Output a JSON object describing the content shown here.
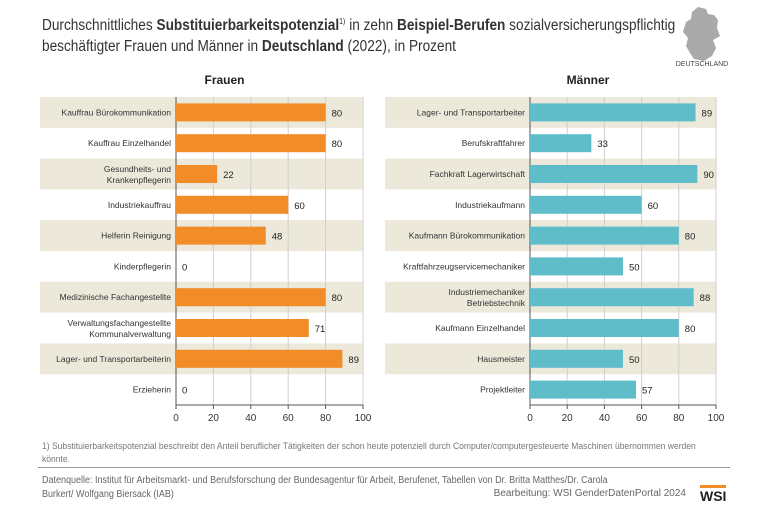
{
  "title": {
    "p1": "Durchschnittliches ",
    "b1": "Substituierbarkeitspotenzial",
    "sup": "1)",
    "p2": " in zehn ",
    "b2": "Beispiel-Berufen",
    "p3": " sozialversicherungspflichtig",
    "p4": "beschäftigter Frauen und Männer in ",
    "b3": "Deutschland",
    "p5": " (2022), in Prozent"
  },
  "map_label": "DEUTSCHLAND",
  "colors": {
    "frauen": "#f28c28",
    "maenner": "#5fbdc9",
    "band": "#ece8da",
    "grid": "#cfcfcf"
  },
  "chart_data": [
    {
      "type": "bar",
      "orientation": "horizontal",
      "title": "Frauen",
      "xlim": [
        0,
        100
      ],
      "xticks": [
        0,
        20,
        40,
        60,
        80,
        100
      ],
      "grid": true,
      "categories": [
        "Kauffrau Bürokommunikation",
        "Kauffrau Einzelhandel",
        "Gesundheits- und Krankenpflegerin",
        "Industriekauffrau",
        "Helferin Reinigung",
        "Kinderpflegerin",
        "Medizinische Fachangestellte",
        "Verwaltungsfachangestellte Kommunalverwaltung",
        "Lager- und Transportarbeiterin",
        "Erzieherin"
      ],
      "values": [
        80,
        80,
        22,
        60,
        48,
        0,
        80,
        71,
        89,
        0
      ]
    },
    {
      "type": "bar",
      "orientation": "horizontal",
      "title": "Männer",
      "xlim": [
        0,
        100
      ],
      "xticks": [
        0,
        20,
        40,
        60,
        80,
        100
      ],
      "grid": true,
      "categories": [
        "Lager- und Transportarbeiter",
        "Berufskraftfahrer",
        "Fachkraft Lagerwirtschaft",
        "Industriekaufmann",
        "Kaufmann Bürokommunikation",
        "Kraftfahrzeugservicemechaniker",
        "Industriemechaniker Betriebstechnik",
        "Kaufmann Einzelhandel",
        "Hausmeister",
        "Projektleiter"
      ],
      "values": [
        89,
        33,
        90,
        60,
        80,
        50,
        88,
        80,
        50,
        57
      ]
    }
  ],
  "footnote": "1) Substituierbarkeitspotenzial beschreibt den Anteil beruflicher Tätigkeiten der schon heute potenziell durch Computer/computergesteuerte Maschinen übernommen werden könnte.",
  "source": "Datenquelle: Institut für Arbeitsmarkt- und Berufsforschung der Bundesagentur für Arbeit, Berufenet, Tabellen von Dr. Britta Matthes/Dr. Carola Burkert/ Wolfgang Biersack (IAB)",
  "credit": "Bearbeitung: WSI GenderDatenPortal 2024",
  "logo": "WSI"
}
